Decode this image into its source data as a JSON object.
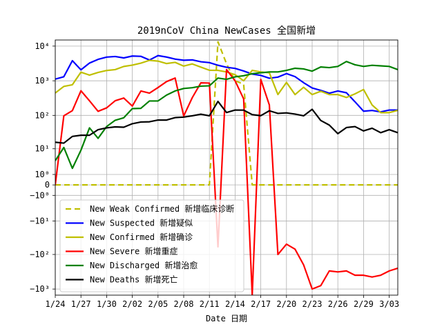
{
  "chart_data": {
    "type": "line",
    "title": "2019nCoV China NewCases 全国新增",
    "xlabel": "Date 日期",
    "ylabel": "",
    "yscale": "symlog",
    "ylim": [
      -1500,
      15000
    ],
    "grid": true,
    "legend_position": "lower-left",
    "xticks": [
      {
        "label": "1/24",
        "day": 0
      },
      {
        "label": "1/27",
        "day": 3
      },
      {
        "label": "1/30",
        "day": 6
      },
      {
        "label": "2/02",
        "day": 9
      },
      {
        "label": "2/05",
        "day": 12
      },
      {
        "label": "2/08",
        "day": 15
      },
      {
        "label": "2/11",
        "day": 18
      },
      {
        "label": "2/14",
        "day": 21
      },
      {
        "label": "2/17",
        "day": 24
      },
      {
        "label": "2/20",
        "day": 27
      },
      {
        "label": "2/23",
        "day": 30
      },
      {
        "label": "2/26",
        "day": 33
      },
      {
        "label": "2/29",
        "day": 36
      },
      {
        "label": "3/03",
        "day": 39
      }
    ],
    "yticks": [
      {
        "label": "10⁴",
        "value": 10000
      },
      {
        "label": "10³",
        "value": 1000
      },
      {
        "label": "10²",
        "value": 100
      },
      {
        "label": "10¹",
        "value": 10
      },
      {
        "label": "10⁰",
        "value": 1
      },
      {
        "label": "0",
        "value": 0
      },
      {
        "label": "−10⁰",
        "value": -1
      },
      {
        "label": "−10¹",
        "value": -10
      },
      {
        "label": "−10²",
        "value": -100
      },
      {
        "label": "−10³",
        "value": -1000
      }
    ],
    "x_start_day": 0,
    "x_end_day": 40,
    "series": [
      {
        "name": "New Weak Confirmed 新增临床诊断",
        "color": "#bfbf00",
        "dashed": true,
        "values": [
          0,
          0,
          0,
          0,
          0,
          0,
          0,
          0,
          0,
          0,
          0,
          0,
          0,
          0,
          0,
          0,
          0,
          0,
          0,
          13332,
          3095,
          1000,
          800,
          0,
          0,
          0,
          0,
          0,
          0,
          0,
          0,
          0,
          0,
          0,
          0,
          0,
          0,
          0,
          0,
          0,
          0
        ]
      },
      {
        "name": "New Suspected 新增疑似",
        "color": "#0000ff",
        "dashed": false,
        "values": [
          1118,
          1309,
          3806,
          2077,
          3248,
          4148,
          4812,
          5019,
          4562,
          5173,
          5072,
          3971,
          5328,
          4833,
          4214,
          3916,
          4008,
          3536,
          3342,
          2807,
          2450,
          2277,
          1918,
          1563,
          1432,
          1185,
          1277,
          1614,
          1318,
          882,
          620,
          530,
          439,
          508,
          452,
          248,
          132,
          139,
          126,
          143,
          143
        ]
      },
      {
        "name": "New Confirmed 新增确诊",
        "color": "#bfbf00",
        "dashed": false,
        "values": [
          444,
          688,
          769,
          1771,
          1459,
          1737,
          1982,
          2102,
          2590,
          2829,
          3235,
          3887,
          3694,
          3143,
          3399,
          2656,
          3062,
          2478,
          2015,
          2000,
          1800,
          1500,
          1000,
          2000,
          1800,
          1700,
          400,
          900,
          400,
          650,
          400,
          500,
          400,
          400,
          330,
          420,
          560,
          200,
          120,
          120,
          140
        ]
      },
      {
        "name": "New Severe 新增重症",
        "color": "#ff0000",
        "dashed": false,
        "values": [
          0,
          97,
          137,
          515,
          264,
          131,
          165,
          266,
          318,
          186,
          507,
          441,
          640,
          949,
          1200,
          96,
          326,
          872,
          861,
          -60,
          2100,
          1000,
          300,
          -1500,
          1100,
          200,
          -100,
          -50,
          -70,
          -200,
          -1000,
          -800,
          -300,
          -320,
          -300,
          -400,
          -400,
          -450,
          -400,
          -300,
          -250
        ]
      },
      {
        "name": "New Discharged 新增治愈",
        "color": "#008000",
        "dashed": false,
        "values": [
          4,
          11,
          2,
          9,
          43,
          21,
          47,
          72,
          85,
          157,
          160,
          261,
          262,
          387,
          510,
          600,
          632,
          700,
          716,
          1200,
          1100,
          1300,
          1400,
          1600,
          1700,
          1800,
          1800,
          2000,
          2300,
          2200,
          1900,
          2500,
          2400,
          2600,
          3600,
          2900,
          2600,
          2800,
          2700,
          2600,
          2100
        ]
      },
      {
        "name": "New Deaths 新增死亡",
        "color": "#000000",
        "dashed": false,
        "values": [
          16,
          15,
          24,
          26,
          26,
          38,
          43,
          46,
          45,
          57,
          64,
          65,
          73,
          73,
          86,
          89,
          97,
          108,
          97,
          254,
          121,
          143,
          142,
          105,
          98,
          136,
          114,
          118,
          109,
          97,
          150,
          71,
          52,
          29,
          44,
          47,
          35,
          42,
          31,
          38,
          31
        ]
      }
    ]
  }
}
